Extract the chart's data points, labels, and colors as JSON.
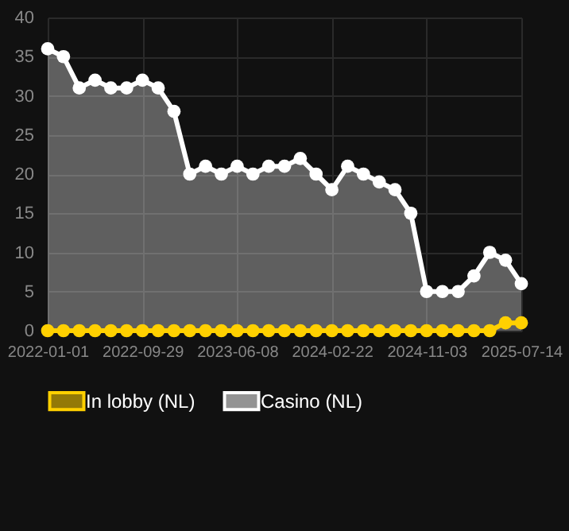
{
  "chart_data": {
    "type": "area",
    "categories": [
      "2022-01-01",
      null,
      null,
      null,
      null,
      null,
      "2022-09-29",
      null,
      null,
      null,
      null,
      null,
      "2023-06-08",
      null,
      null,
      null,
      null,
      null,
      "2024-02-22",
      null,
      null,
      null,
      null,
      null,
      "2024-11-03",
      null,
      null,
      null,
      null,
      null,
      "2025-07-14"
    ],
    "series": [
      {
        "name": "In lobby (NL)",
        "type": "line",
        "color": "#ffd000",
        "values": [
          0,
          0,
          0,
          0,
          0,
          0,
          0,
          0,
          0,
          0,
          0,
          0,
          0,
          0,
          0,
          0,
          0,
          0,
          0,
          0,
          0,
          0,
          0,
          0,
          0,
          0,
          0,
          0,
          0,
          1,
          1
        ]
      },
      {
        "name": "Casino (NL)",
        "color": "#ffffff",
        "values": [
          36,
          35,
          31,
          32,
          31,
          31,
          32,
          31,
          28,
          20,
          21,
          20,
          21,
          20,
          21,
          21,
          22,
          20,
          18,
          21,
          20,
          19,
          18,
          15,
          5,
          5,
          5,
          7,
          10,
          9,
          6
        ]
      }
    ],
    "ylim": [
      0,
      40
    ],
    "yticks": [
      0,
      5,
      10,
      15,
      20,
      25,
      30,
      35,
      40
    ],
    "grid": true,
    "legend": "bottom",
    "marker": "circle",
    "line_style": "solid"
  }
}
